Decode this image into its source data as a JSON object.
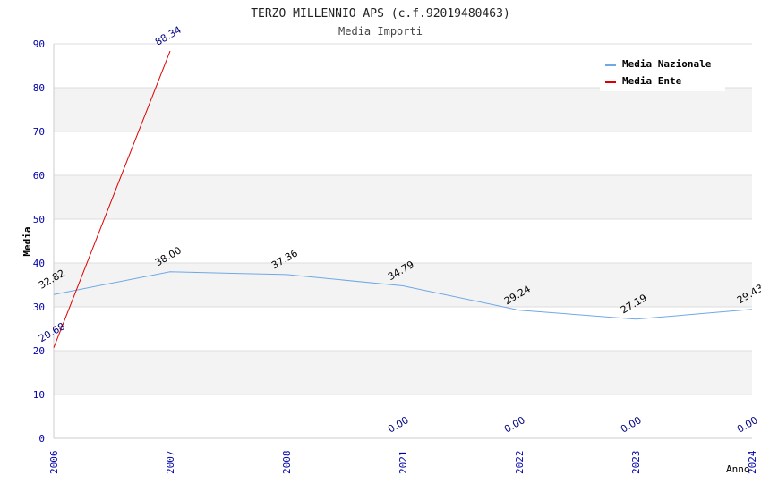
{
  "chart_data": {
    "type": "line",
    "title": "TERZO MILLENNIO APS (c.f.92019480463)",
    "subtitle": "Media Importi",
    "xlabel": "Anno",
    "ylabel": "Media",
    "ylim": [
      0,
      90
    ],
    "yticks": [
      "0",
      "10",
      "20",
      "30",
      "40",
      "50",
      "60",
      "70",
      "80",
      "90"
    ],
    "categories": [
      "2006",
      "2007",
      "2008",
      "2021",
      "2022",
      "2023",
      "2024"
    ],
    "grid": true,
    "legend_position": "top-right",
    "series": [
      {
        "name": "Media Nazionale",
        "color": "#6fa8e6",
        "label_color": "#000000",
        "values": [
          32.82,
          38.0,
          37.36,
          34.79,
          29.24,
          27.19,
          29.43
        ],
        "labels": [
          "32.82",
          "38.00",
          "37.36",
          "34.79",
          "29.24",
          "27.19",
          "29.43"
        ]
      },
      {
        "name": "Media Ente",
        "color": "#dd0000",
        "label_color": "#000080",
        "values": [
          20.68,
          88.34,
          null,
          0.0,
          0.0,
          0.0,
          0.0
        ],
        "labels": [
          "20.68",
          "88.34",
          null,
          "0.00",
          "0.00",
          "0.00",
          "0.00"
        ],
        "line_points": 2
      }
    ]
  }
}
